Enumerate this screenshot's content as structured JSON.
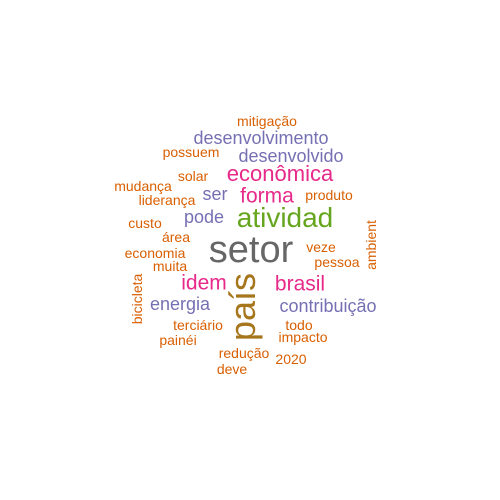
{
  "colors": {
    "orange": "#D95F02",
    "purple": "#7570B3",
    "pink": "#E7298A",
    "green": "#66A61E",
    "gold": "#A6761D",
    "gray": "#666666"
  },
  "words": {
    "setor": "setor",
    "pais": "país",
    "atividad": "atividad",
    "economica": "econômica",
    "forma": "forma",
    "brasil": "brasil",
    "idem": "idem",
    "desenvolvimento": "desenvolvimento",
    "desenvolvido": "desenvolvido",
    "contribuicao": "contribuição",
    "energia": "energia",
    "ser": "ser",
    "pode": "pode",
    "mitigacao": "mitigação",
    "possuem": "possuem",
    "solar": "solar",
    "mudanca": "mudança",
    "lideranca": "liderança",
    "produto": "produto",
    "custo": "custo",
    "area": "área",
    "economia": "economia",
    "muita": "muita",
    "veze": "veze",
    "pessoa": "pessoa",
    "ambient": "ambient",
    "bicicleta": "bicicleta",
    "terciario": "terciário",
    "painei": "painéi",
    "todo": "todo",
    "impacto": "impacto",
    "reducao": "redução",
    "ano2020": "2020",
    "deve": "deve"
  }
}
